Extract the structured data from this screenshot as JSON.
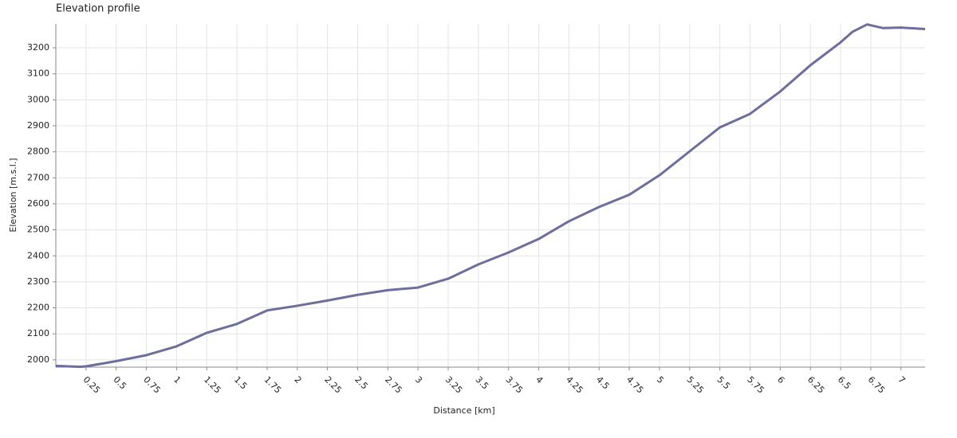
{
  "chart_data": {
    "type": "line",
    "title": "Elevation profile",
    "x_label": "Distance [km]",
    "y_label": "Elevation [m.s.l.]",
    "x": [
      0,
      0.1,
      0.2,
      0.25,
      0.5,
      0.75,
      1,
      1.25,
      1.5,
      1.75,
      2,
      2.25,
      2.5,
      2.75,
      3,
      3.25,
      3.5,
      3.75,
      4,
      4.25,
      4.5,
      4.75,
      5,
      5.25,
      5.5,
      5.75,
      6,
      6.25,
      6.5,
      6.6,
      6.72,
      6.85,
      7,
      7.2
    ],
    "series": [
      {
        "name": "Elevation",
        "color": "#6e6e9c",
        "values": [
          1977,
          1975,
          1973,
          1975,
          1995,
          2018,
          2052,
          2104,
          2138,
          2190,
          2208,
          2228,
          2250,
          2268,
          2278,
          2312,
          2367,
          2413,
          2465,
          2533,
          2588,
          2635,
          2710,
          2802,
          2894,
          2946,
          3032,
          3133,
          3221,
          3262,
          3290,
          3276,
          3278,
          3272
        ]
      }
    ],
    "xlim": [
      0,
      7.2
    ],
    "ylim": [
      1972,
      3292
    ],
    "xticks": [
      0.25,
      0.5,
      0.75,
      1,
      1.25,
      1.5,
      1.75,
      2,
      2.25,
      2.5,
      2.75,
      3,
      3.25,
      3.5,
      3.75,
      4,
      4.25,
      4.5,
      4.75,
      5,
      5.25,
      5.5,
      5.75,
      6,
      6.25,
      6.5,
      6.75,
      7
    ],
    "yticks": [
      2000,
      2100,
      2200,
      2300,
      2400,
      2500,
      2600,
      2700,
      2800,
      2900,
      3000,
      3100,
      3200
    ],
    "grid": true
  }
}
